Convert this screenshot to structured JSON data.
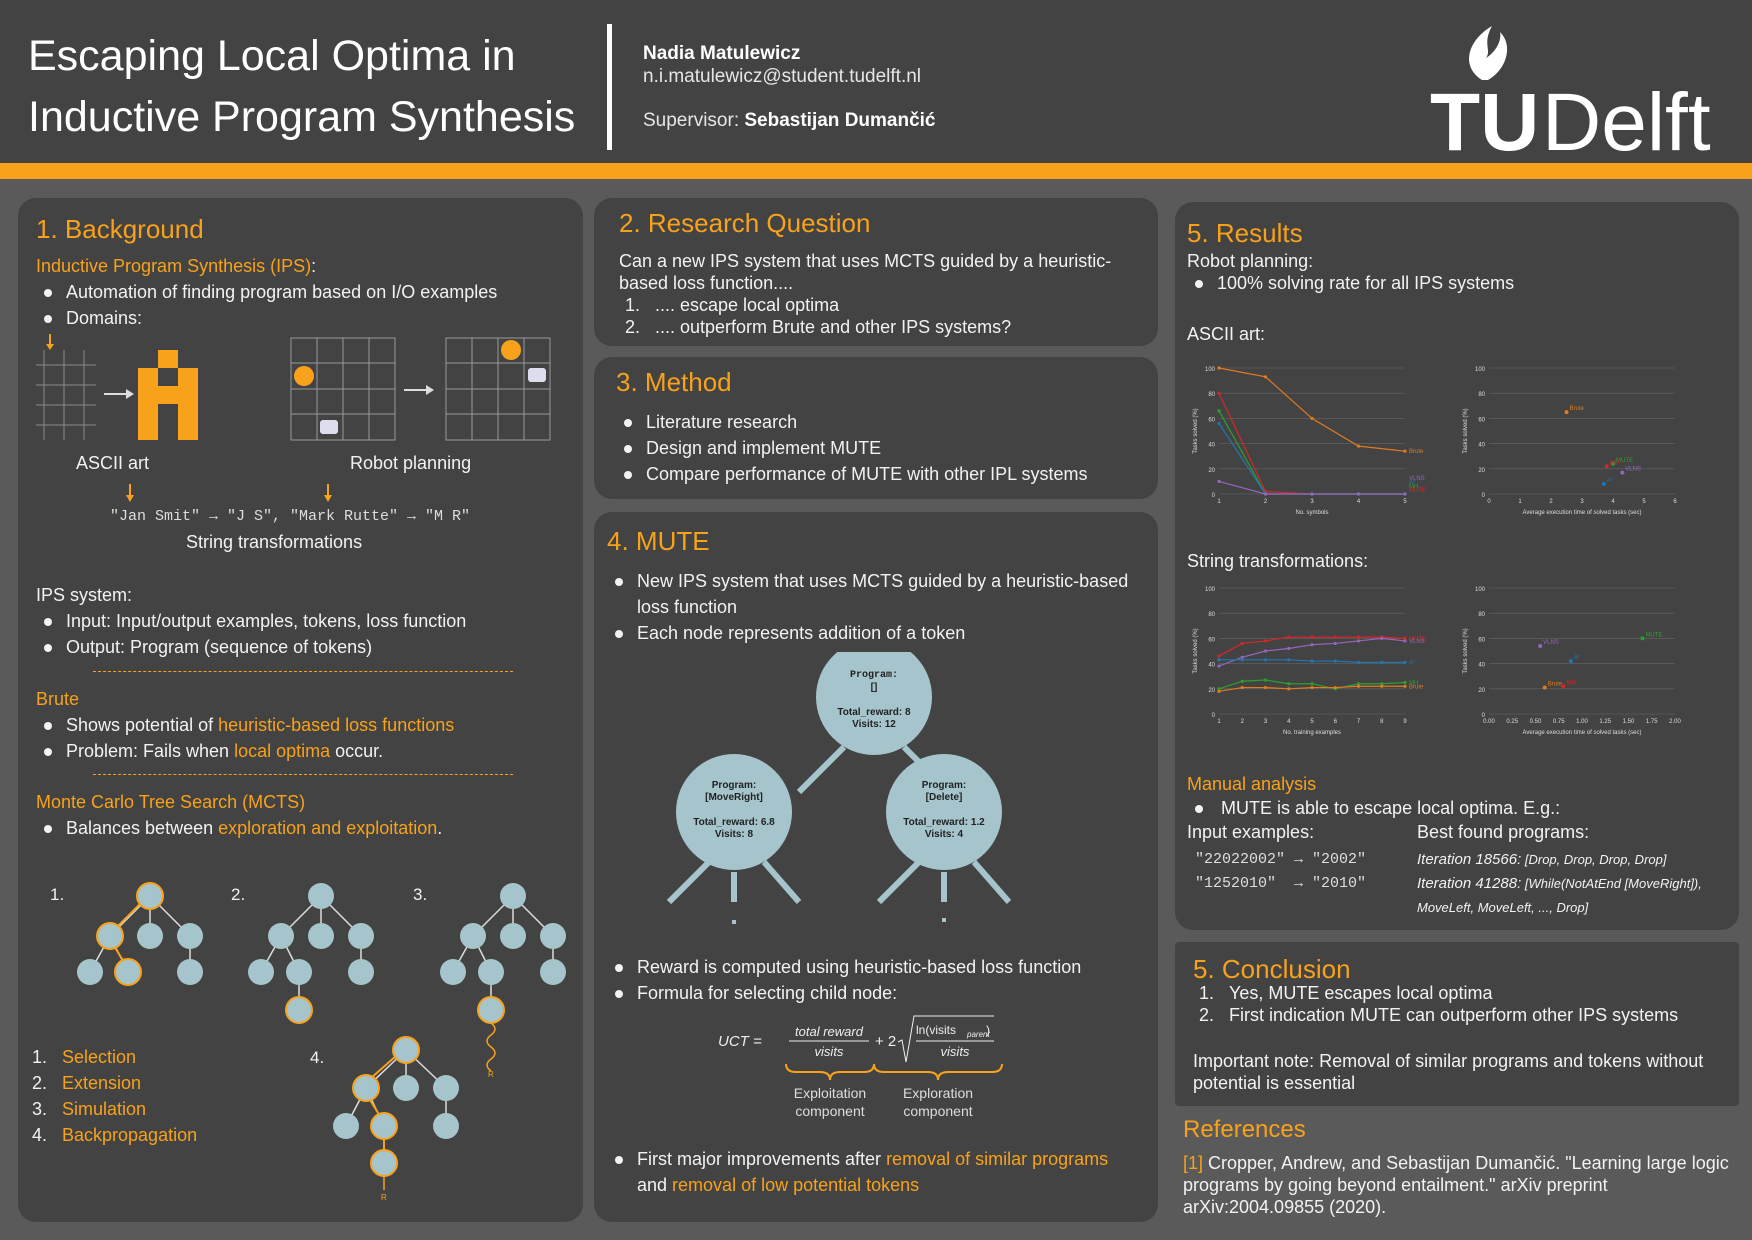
{
  "header": {
    "title_line1": "Escaping Local Optima in",
    "title_line2": "Inductive Program Synthesis",
    "author_name": "Nadia Matulewicz",
    "author_email": "n.i.matulewicz@student.tudelft.nl",
    "supervisor_label": "Supervisor: ",
    "supervisor_name": "Sebastijan Dumančić",
    "logo_text_tu": "TU",
    "logo_text_delft": "Delft"
  },
  "background": {
    "heading": "1. Background",
    "ips_label": "Inductive Program Synthesis (IPS)",
    "ips_colon": ":",
    "ips_items": [
      "Automation of finding program based on I/O examples",
      "Domains:"
    ],
    "ascii_caption": "ASCII art",
    "robot_caption": "Robot planning",
    "string_example": "\"Jan Smit\" → \"J S\", \"Mark Rutte\" → \"M R\"",
    "string_caption": "String transformations",
    "ips_system_label": "IPS system:",
    "ips_system_items": [
      "Input: Input/output examples, tokens, loss function",
      "Output: Program (sequence of tokens)"
    ],
    "brute_label": "Brute",
    "brute_item1_pre": "Shows potential of ",
    "brute_item1_hl": "heuristic-based loss functions",
    "brute_item2_pre": "Problem: Fails when ",
    "brute_item2_hl": "local optima",
    "brute_item2_post": " occur.",
    "mcts_label": "Monte Carlo Tree Search (MCTS)",
    "mcts_item_pre": "Balances between ",
    "mcts_item_hl": "exploration and exploitation",
    "mcts_item_post": ".",
    "tree_labels": [
      "1.",
      "2.",
      "3.",
      "4."
    ],
    "sim_r": "R",
    "backprop_r": "R",
    "steps": [
      {
        "num": "1.",
        "name": "Selection"
      },
      {
        "num": "2.",
        "name": "Extension"
      },
      {
        "num": "3.",
        "name": "Simulation"
      },
      {
        "num": "4.",
        "name": "Backpropagation"
      }
    ]
  },
  "research": {
    "heading": "2. Research Question",
    "text": "Can a new IPS system that uses MCTS guided by a heuristic-based loss function....",
    "items": [
      {
        "num": "1.",
        "text": ".... escape local optima"
      },
      {
        "num": "2.",
        "text": ".... outperform Brute and other IPS systems?"
      }
    ]
  },
  "method": {
    "heading": "3. Method",
    "items": [
      "Literature research",
      "Design and implement MUTE",
      "Compare performance of MUTE with other IPL systems"
    ]
  },
  "mute": {
    "heading": "4. MUTE",
    "items": [
      "New IPS system that uses MCTS guided by a heuristic-based loss function",
      "Each node represents  addition of a token"
    ],
    "nodes": [
      {
        "program": "Program:",
        "tokens": "[]",
        "reward": "Total_reward: 8",
        "visits": "Visits: 12"
      },
      {
        "program": "Program:",
        "tokens": "[MoveRight]",
        "reward": "Total_reward: 6.8",
        "visits": "Visits: 8"
      },
      {
        "program": "Program:",
        "tokens": "[Delete]",
        "reward": "Total_reward: 1.2",
        "visits": "Visits: 4"
      }
    ],
    "items2": [
      "Reward is computed using heuristic-based loss function",
      "Formula for selecting child node:"
    ],
    "formula_lhs": "UCT =",
    "formula_num1": "total reward",
    "formula_den1": "visits",
    "formula_plus": "+ 2",
    "formula_ln": "ln(visits",
    "formula_parent": "parent",
    "formula_close": ")",
    "formula_den2": "visits",
    "exploitation": [
      "Exploitation",
      "component"
    ],
    "exploration": [
      "Exploration",
      "component"
    ],
    "last_pre": "First major improvements after ",
    "last_hl1": "removal of similar programs",
    "last_mid": "and ",
    "last_hl2": "removal of low potential tokens"
  },
  "results": {
    "heading": "5. Results",
    "robot_label": "Robot planning:",
    "robot_item": "100% solving rate for all IPS systems",
    "ascii_label": "ASCII art:",
    "string_label": "String transformations:",
    "manual_label": "Manual analysis",
    "manual_item": "MUTE is able to escape local optima. E.g.:",
    "input_label": "Input examples:",
    "best_label": "Best found programs:",
    "examples": [
      {
        "input": "\"22022002\" → \"2002\"",
        "iter": "Iteration 18566:",
        "prog": " [Drop, Drop, Drop, Drop]"
      },
      {
        "input": "\"1252010\"  → \"2010\"",
        "iter": "Iteration 41288:",
        "prog": " [While(NotAtEnd [MoveRight]),"
      }
    ],
    "prog_cont": "MoveLeft, MoveLeft, ..., Drop]"
  },
  "conclusion": {
    "heading": "5. Conclusion",
    "items": [
      {
        "num": "1.",
        "text": "Yes, MUTE escapes local optima"
      },
      {
        "num": "2.",
        "text": "First indication MUTE can outperform other IPS systems"
      }
    ],
    "note": "Important note: Removal of similar programs and tokens without potential is essential"
  },
  "references": {
    "heading": "References",
    "ref_num": "[1]",
    "ref_text": " Cropper, Andrew, and Sebastijan Dumančić. \"Learning large logic programs by going beyond entailment.\" arXiv preprint arXiv:2004.09855 (2020)."
  },
  "colors": {
    "accent": "#f7a21a",
    "node": "#a5c4cc",
    "panel": "#434343",
    "bg": "#5a5a5a"
  },
  "chart_data": [
    {
      "type": "line",
      "xlabel": "No. symbols",
      "ylabel": "Tasks solved (%)",
      "x": [
        1,
        2,
        3,
        4,
        5
      ],
      "ylim": [
        0,
        100
      ],
      "yticks": [
        0,
        20,
        40,
        60,
        80,
        100
      ],
      "series": [
        {
          "name": "Brute",
          "color": "#e07b1f",
          "values": [
            100,
            93,
            60,
            38,
            34
          ]
        },
        {
          "name": "MUTE",
          "color": "#d62728",
          "values": [
            80,
            2,
            0,
            0,
            0
          ]
        },
        {
          "name": "MH",
          "color": "#2ca02c",
          "values": [
            66,
            0,
            0,
            0,
            0
          ]
        },
        {
          "name": "A*",
          "color": "#1f77b4",
          "values": [
            56,
            0,
            0,
            0,
            0
          ]
        },
        {
          "name": "VLNS",
          "color": "#9467bd",
          "values": [
            10,
            0,
            0,
            0,
            0
          ]
        }
      ]
    },
    {
      "type": "scatter",
      "xlabel": "Average execution time of solved tasks (sec)",
      "ylabel": "Tasks solved (%)",
      "xlim": [
        0,
        6
      ],
      "xticks": [
        0,
        1,
        2,
        3,
        4,
        5,
        6
      ],
      "ylim": [
        0,
        100
      ],
      "yticks": [
        0,
        20,
        40,
        60,
        80,
        100
      ],
      "series": [
        {
          "name": "Brute",
          "color": "#e07b1f",
          "points": [
            [
              2.5,
              65
            ]
          ]
        },
        {
          "name": "MUTE",
          "color": "#2ca02c",
          "points": [
            [
              4.0,
              24
            ]
          ]
        },
        {
          "name": "MH",
          "color": "#d62728",
          "points": [
            [
              3.8,
              22
            ]
          ]
        },
        {
          "name": "VLNS",
          "color": "#9467bd",
          "points": [
            [
              4.3,
              17
            ]
          ]
        },
        {
          "name": "A*",
          "color": "#1f77b4",
          "points": [
            [
              3.7,
              8
            ]
          ]
        }
      ]
    },
    {
      "type": "line",
      "xlabel": "No. training examples",
      "ylabel": "Tasks solved (%)",
      "x": [
        1,
        2,
        3,
        4,
        5,
        6,
        7,
        8,
        9
      ],
      "ylim": [
        0,
        100
      ],
      "yticks": [
        0,
        20,
        40,
        60,
        80,
        100
      ],
      "series": [
        {
          "name": "MUTE",
          "color": "#d62728",
          "values": [
            46,
            56,
            58,
            61,
            61,
            61,
            61,
            61,
            60
          ]
        },
        {
          "name": "VLNS",
          "color": "#9467bd",
          "values": [
            38,
            45,
            50,
            52,
            55,
            56,
            58,
            60,
            58
          ]
        },
        {
          "name": "A*",
          "color": "#1f77b4",
          "values": [
            43,
            43,
            43,
            43,
            42,
            42,
            41,
            41,
            41
          ]
        },
        {
          "name": "MH",
          "color": "#2ca02c",
          "values": [
            20,
            26,
            27,
            24,
            24,
            20,
            24,
            24,
            25
          ]
        },
        {
          "name": "Brute",
          "color": "#e07b1f",
          "values": [
            18,
            21,
            21,
            20,
            21,
            21,
            22,
            22,
            22
          ]
        }
      ]
    },
    {
      "type": "scatter",
      "xlabel": "Average execution time of solved tasks (sec)",
      "ylabel": "Tasks solved (%)",
      "xlim": [
        0,
        2.0
      ],
      "xticks": [
        0.0,
        0.25,
        0.5,
        0.75,
        1.0,
        1.25,
        1.5,
        1.75,
        2.0
      ],
      "ylim": [
        0,
        100
      ],
      "yticks": [
        0,
        20,
        40,
        60,
        80,
        100
      ],
      "series": [
        {
          "name": "MUTE",
          "color": "#2ca02c",
          "points": [
            [
              1.65,
              60
            ]
          ]
        },
        {
          "name": "VLNS",
          "color": "#9467bd",
          "points": [
            [
              0.55,
              54
            ]
          ]
        },
        {
          "name": "A*",
          "color": "#1f77b4",
          "points": [
            [
              0.88,
              42
            ]
          ]
        },
        {
          "name": "Brute",
          "color": "#e07b1f",
          "points": [
            [
              0.6,
              21
            ]
          ]
        },
        {
          "name": "MH",
          "color": "#d62728",
          "points": [
            [
              0.8,
              22
            ]
          ]
        }
      ]
    }
  ]
}
